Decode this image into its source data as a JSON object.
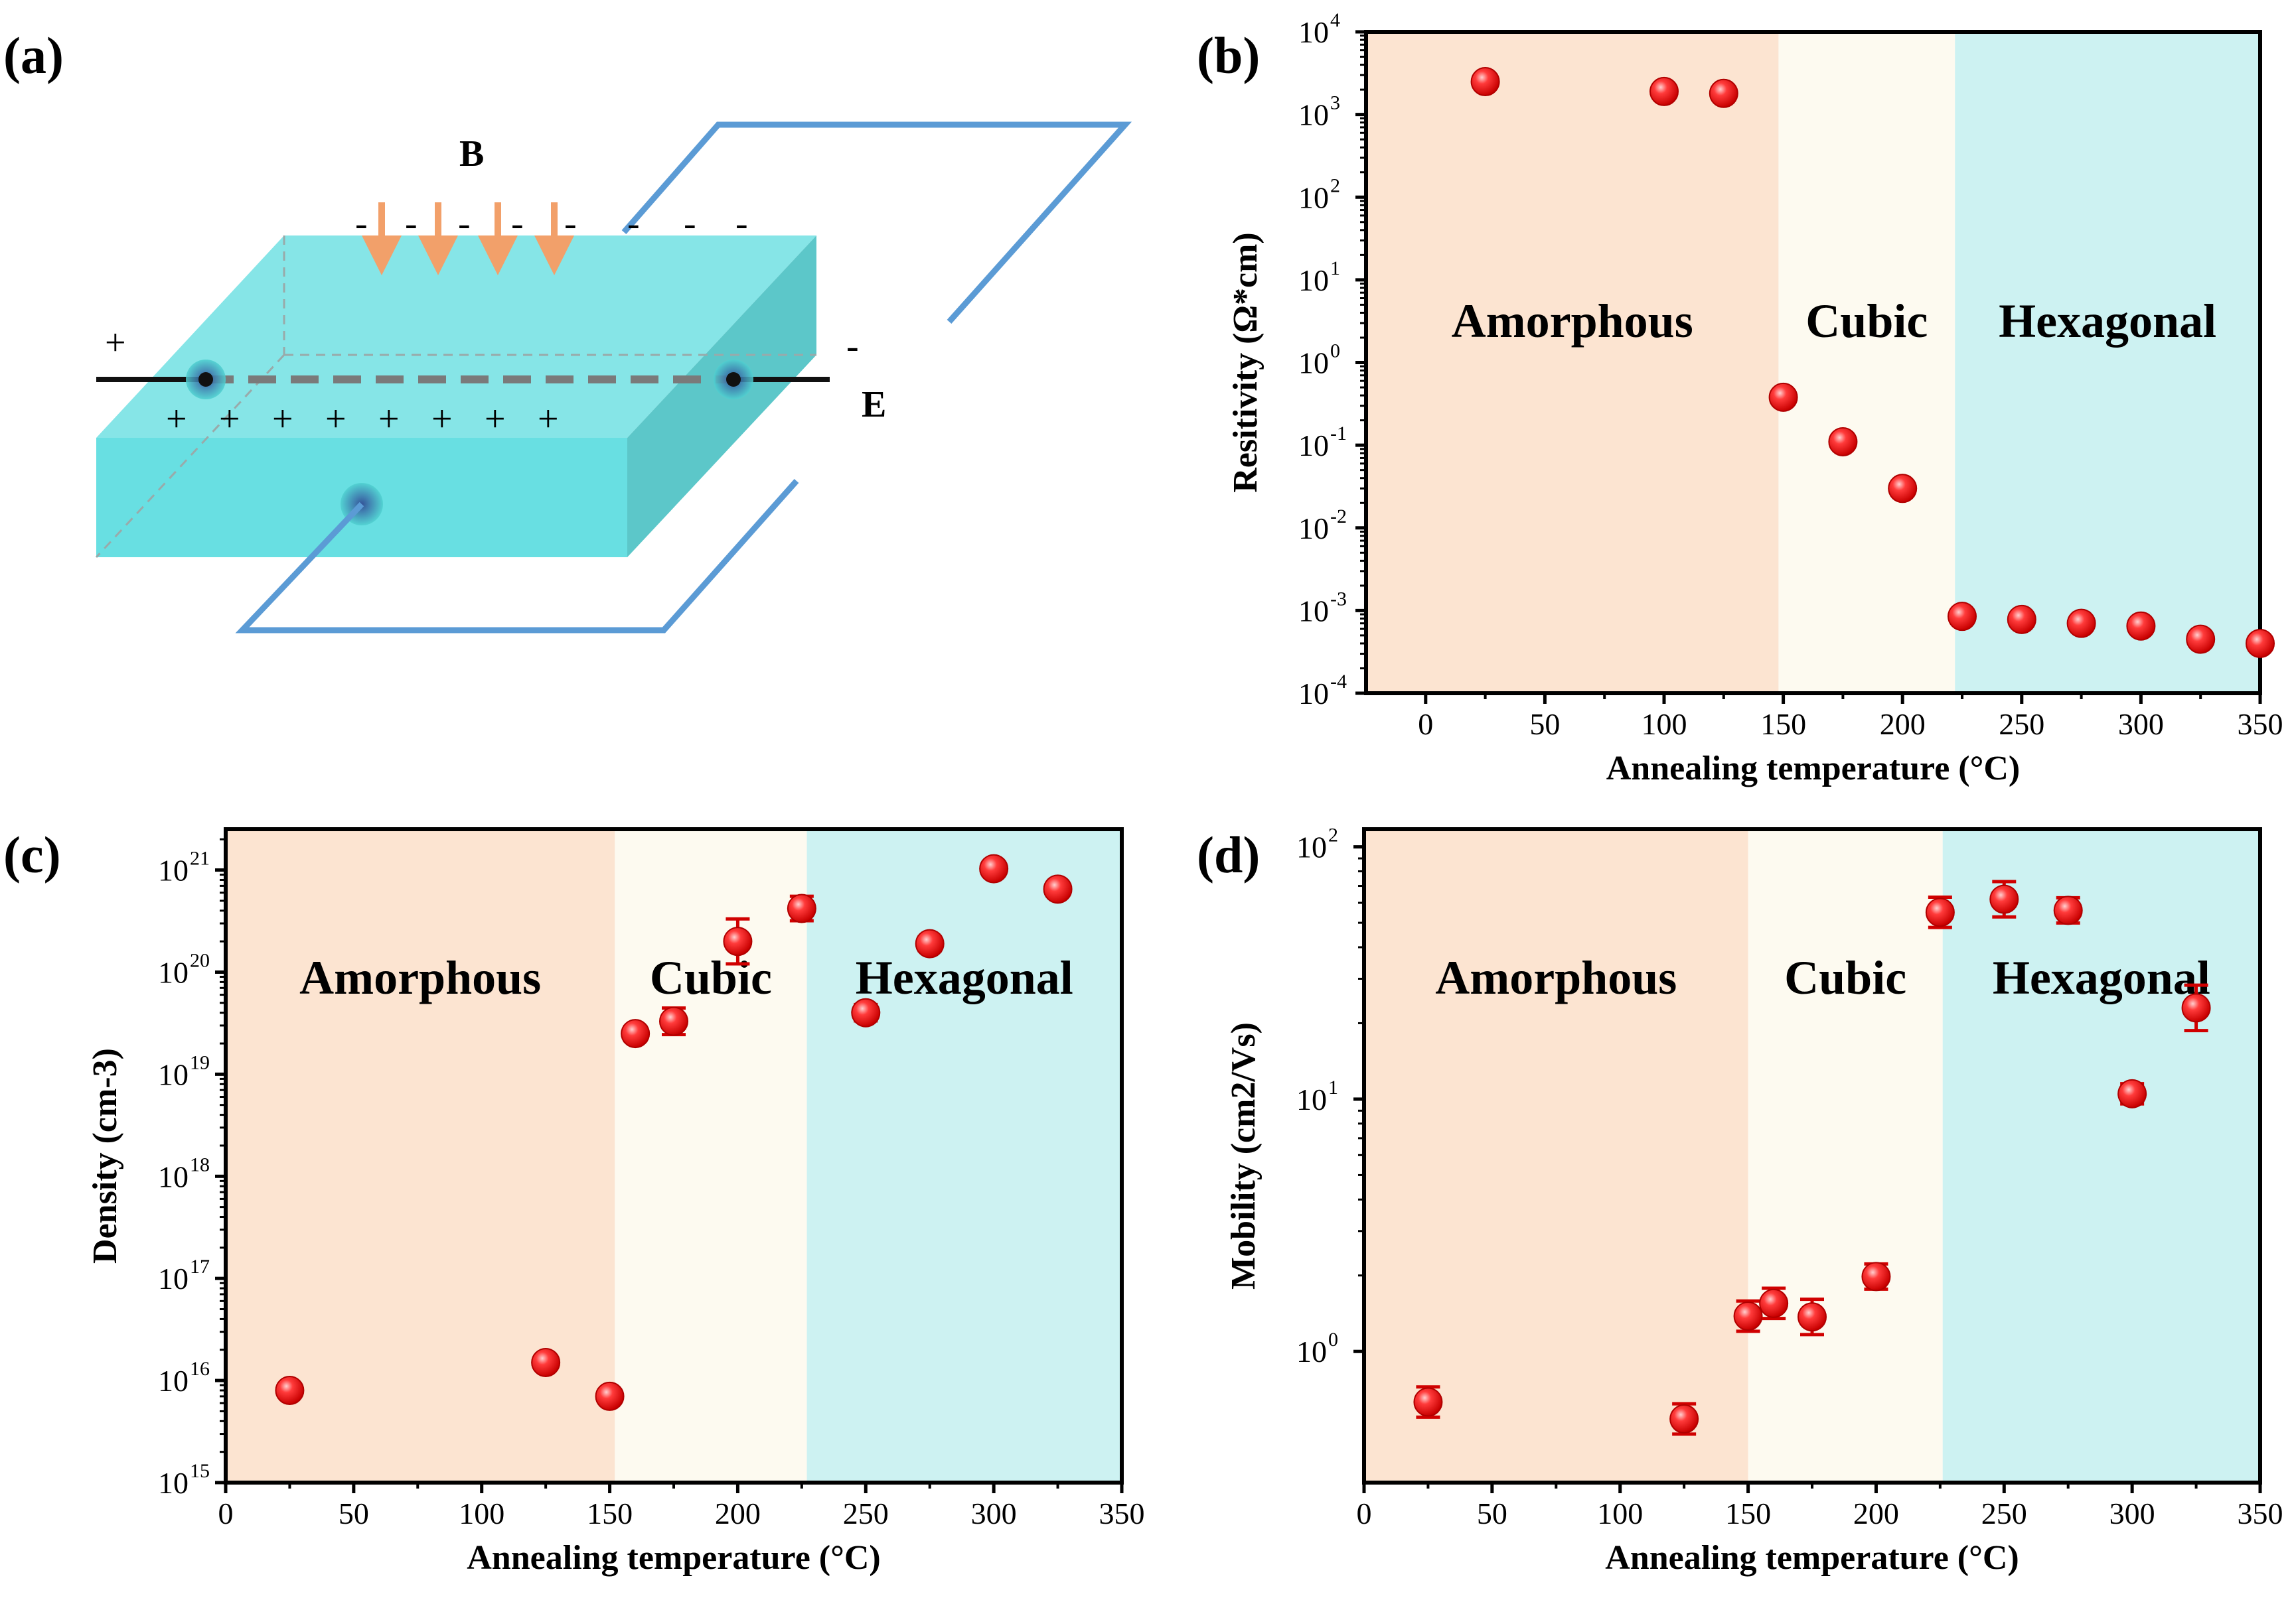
{
  "panel_labels": [
    "(a)",
    "(b)",
    "(c)",
    "(d)"
  ],
  "colors": {
    "amorphous_bg": "#fce4d1",
    "cubic_bg": "#fdfaf0",
    "hexagonal_bg": "#cdf2f2",
    "marker": "#ee1c1c",
    "slab_top": "#86e5e7",
    "slab_front": "#68dfe2",
    "slab_side": "#5cc7c9",
    "wire": "#5b9bd5",
    "arrow": "#f2a06a"
  },
  "schematic": {
    "field_label": "B",
    "electric_label": "E",
    "left_sign": "+",
    "right_sign": "-",
    "top_charges": [
      "-",
      "-",
      "-",
      "-",
      "-",
      "-",
      "-",
      "-"
    ],
    "front_charges": [
      "+",
      "+",
      "+",
      "+",
      "+",
      "+",
      "+",
      "+"
    ]
  },
  "chart_data": [
    {
      "id": "b",
      "type": "scatter",
      "title": "",
      "xlabel": "Annealing temperature (°C)",
      "ylabel": "Resitivity (Ω*cm)",
      "yscale": "log",
      "xlim": [
        -25,
        350
      ],
      "ylim_exp": [
        -4,
        4
      ],
      "xticks": [
        0,
        50,
        100,
        150,
        200,
        250,
        300,
        350
      ],
      "ytick_exps": [
        -4,
        -3,
        -2,
        -1,
        0,
        1,
        2,
        3,
        4
      ],
      "regions": [
        {
          "name": "Amorphous",
          "from": -25,
          "to": 148
        },
        {
          "name": "Cubic",
          "from": 148,
          "to": 222
        },
        {
          "name": "Hexagonal",
          "from": 222,
          "to": 350
        }
      ],
      "x": [
        25,
        100,
        125,
        150,
        175,
        200,
        225,
        250,
        275,
        300,
        325,
        350
      ],
      "y": [
        2500,
        1900,
        1800,
        0.38,
        0.11,
        0.03,
        0.00085,
        0.00078,
        0.0007,
        0.00065,
        0.00045,
        0.0004
      ],
      "err": [
        0,
        0,
        0,
        0,
        0,
        0,
        0,
        0,
        0,
        0,
        0,
        0
      ]
    },
    {
      "id": "c",
      "type": "scatter",
      "title": "",
      "xlabel": "Annealing temperature (°C)",
      "ylabel": "Density (cm-3)",
      "yscale": "log",
      "xlim": [
        0,
        350
      ],
      "ylim_exp": [
        15,
        21.4
      ],
      "xticks": [
        0,
        50,
        100,
        150,
        200,
        250,
        300,
        350
      ],
      "ytick_exps": [
        15,
        16,
        17,
        18,
        19,
        20,
        21
      ],
      "regions": [
        {
          "name": "Amorphous",
          "from": 0,
          "to": 152
        },
        {
          "name": "Cubic",
          "from": 152,
          "to": 227
        },
        {
          "name": "Hexagonal",
          "from": 227,
          "to": 350
        }
      ],
      "x": [
        25,
        125,
        150,
        160,
        175,
        200,
        225,
        250,
        275,
        300,
        325
      ],
      "y": [
        8000000000000000.0,
        1.5e+16,
        7000000000000000.0,
        2.5e+19,
        3.3e+19,
        2e+20,
        4.2e+20,
        4e+19,
        1.9e+20,
        1.03e+21,
        6.5e+20
      ],
      "err": [
        0.06,
        0.06,
        0.05,
        0.07,
        0.13,
        0.22,
        0.12,
        0.08,
        0.07,
        0.06,
        0.06
      ]
    },
    {
      "id": "d",
      "type": "scatter",
      "title": "",
      "xlabel": "Annealing temperature (°C)",
      "ylabel": "Mobility (cm2/Vs)",
      "yscale": "log",
      "xlim": [
        0,
        350
      ],
      "ylim_exp": [
        -0.52,
        2.07
      ],
      "xticks": [
        0,
        50,
        100,
        150,
        200,
        250,
        300,
        350
      ],
      "ytick_exps": [
        0,
        1,
        2
      ],
      "regions": [
        {
          "name": "Amorphous",
          "from": 0,
          "to": 150
        },
        {
          "name": "Cubic",
          "from": 150,
          "to": 226
        },
        {
          "name": "Hexagonal",
          "from": 226,
          "to": 350
        }
      ],
      "x": [
        25,
        125,
        150,
        160,
        175,
        200,
        225,
        250,
        275,
        300,
        325
      ],
      "y": [
        0.63,
        0.54,
        1.38,
        1.55,
        1.37,
        1.98,
        55,
        62,
        56,
        10.5,
        23
      ],
      "err": [
        0.06,
        0.06,
        0.06,
        0.06,
        0.07,
        0.05,
        0.06,
        0.07,
        0.05,
        0.04,
        0.09
      ]
    }
  ]
}
